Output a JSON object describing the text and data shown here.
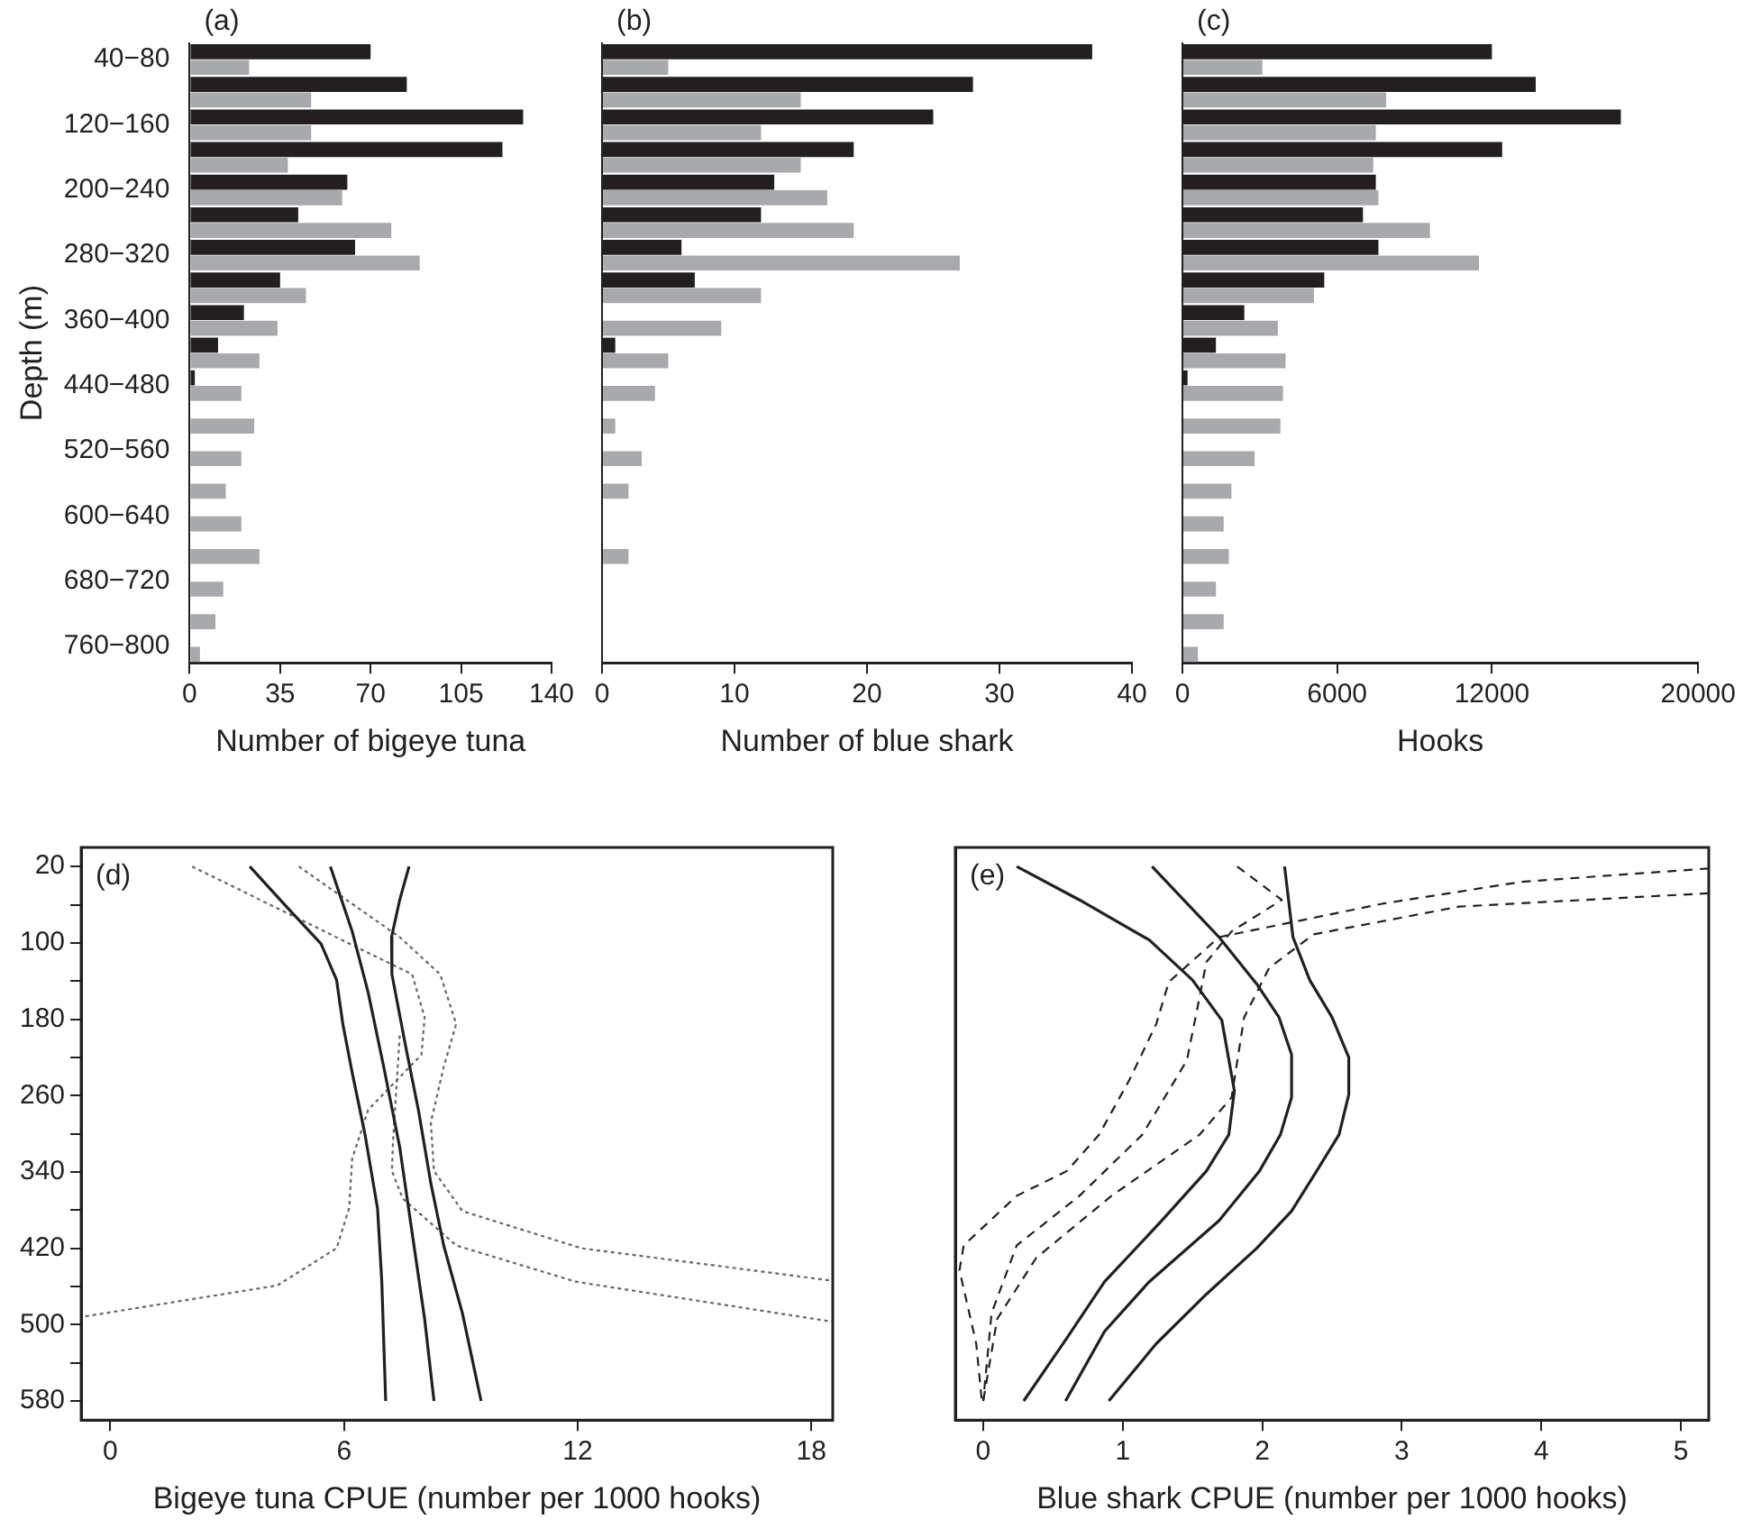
{
  "chart_data": [
    {
      "type": "bar",
      "title": "(a)",
      "orientation": "horizontal",
      "ylabel": "Depth (m)",
      "xlabel": "Number of bigeye tuna",
      "categories": [
        "40−80",
        null,
        "120−160",
        null,
        "200−240",
        null,
        "280−320",
        null,
        "360−400",
        null,
        "440−480",
        null,
        "520−560",
        null,
        "600−640",
        null,
        "680−720",
        null,
        "760−800"
      ],
      "series": [
        {
          "color": "#231f20",
          "values": [
            70,
            84,
            129,
            121,
            61,
            42,
            64,
            35,
            21,
            11,
            2,
            0,
            0,
            0,
            0,
            0,
            0,
            0,
            0
          ]
        },
        {
          "color": "#a7a9ac",
          "values": [
            23,
            47,
            47,
            38,
            59,
            78,
            89,
            45,
            34,
            27,
            20,
            25,
            20,
            14,
            20,
            27,
            13,
            10,
            4
          ]
        }
      ],
      "xlim": [
        0,
        140
      ],
      "xticks": [
        0,
        35,
        70,
        105,
        140
      ]
    },
    {
      "type": "bar",
      "title": "(b)",
      "orientation": "horizontal",
      "xlabel": "Number of blue shark",
      "tick_labels": "x",
      "categories": [
        null,
        null,
        null,
        null,
        null,
        null,
        null,
        null,
        null,
        null,
        null,
        null,
        null,
        null,
        null,
        null,
        null,
        null,
        null
      ],
      "series": [
        {
          "color": "#231f20",
          "values": [
            37,
            28,
            25,
            19,
            13,
            12,
            6,
            7,
            0,
            1,
            0,
            0,
            0,
            0,
            0,
            0,
            0,
            0,
            0
          ]
        },
        {
          "color": "#a7a9ac",
          "values": [
            5,
            15,
            12,
            15,
            17,
            19,
            27,
            12,
            9,
            5,
            4,
            1,
            3,
            2,
            0,
            2,
            0,
            0,
            0
          ]
        }
      ],
      "xlim": [
        0,
        40
      ],
      "xticks": [
        0,
        10,
        20,
        30,
        40
      ]
    },
    {
      "type": "bar",
      "title": "(c)",
      "orientation": "horizontal",
      "xlabel": "Hooks",
      "tick_labels": "x",
      "categories": [
        null,
        null,
        null,
        null,
        null,
        null,
        null,
        null,
        null,
        null,
        null,
        null,
        null,
        null,
        null,
        null,
        null,
        null,
        null
      ],
      "series": [
        {
          "color": "#231f20",
          "values": [
            12000,
            13700,
            17000,
            12400,
            7500,
            7000,
            7600,
            5500,
            2400,
            1300,
            200,
            0,
            0,
            0,
            0,
            0,
            0,
            0,
            0
          ]
        },
        {
          "color": "#a7a9ac",
          "values": [
            3100,
            7900,
            7500,
            7400,
            7600,
            9600,
            11500,
            5100,
            3700,
            4000,
            3900,
            3800,
            2800,
            1900,
            1600,
            1800,
            1300,
            1600,
            600
          ]
        }
      ],
      "xlim": [
        0,
        20000
      ],
      "xticks": [
        0,
        6000,
        12000,
        20000
      ]
    },
    {
      "type": "line",
      "title": "(d)",
      "xlabel": "Bigeye tuna CPUE (number per 1000 hooks)",
      "series": [
        {
          "color": "#231f20",
          "line_style": "solid",
          "x": [
            3.58,
            4.52,
            5.41,
            5.81,
            5.97,
            6.21,
            6.54,
            6.86,
            6.97,
            7.07
          ],
          "values": [
            20,
            62,
            101,
            139,
            185,
            236,
            301,
            378,
            455,
            580
          ]
        },
        {
          "color": "#231f20",
          "line_style": "solid",
          "x": [
            5.65,
            6.21,
            6.62,
            7.02,
            7.43,
            7.75,
            8.07,
            8.31
          ],
          "values": [
            20,
            88,
            152,
            230,
            314,
            404,
            494,
            580
          ]
        },
        {
          "color": "#231f20",
          "line_style": "solid",
          "x": [
            7.67,
            7.43,
            7.22,
            7.23,
            7.59,
            7.91,
            8.23,
            8.56,
            9.04,
            9.52
          ],
          "values": [
            20,
            55,
            94,
            133,
            210,
            275,
            352,
            417,
            488,
            580
          ]
        },
        {
          "color": "#666666",
          "line_style": "dotted",
          "x": [
            2.1,
            4.2,
            7.75,
            8.07,
            7.99,
            6.62,
            6.21,
            6.13,
            5.81,
            4.28,
            -0.75
          ],
          "values": [
            20,
            62,
            133,
            178,
            217,
            275,
            326,
            378,
            420,
            459,
            492
          ]
        },
        {
          "color": "#666666",
          "line_style": "dotted",
          "x": [
            4.84,
            7.43,
            8.47,
            8.88,
            8.56,
            8.23,
            8.31,
            9.04,
            12.1,
            18.55
          ],
          "values": [
            20,
            94,
            133,
            185,
            230,
            288,
            339,
            381,
            420,
            454
          ]
        },
        {
          "color": "#666666",
          "line_style": "dotted",
          "x": [
            7.43,
            7.26,
            7.23,
            7.51,
            8.88,
            11.95,
            18.55
          ],
          "values": [
            197,
            307,
            339,
            368,
            417,
            455,
            497
          ]
        }
      ],
      "xlim": [
        -0.75,
        18.55
      ],
      "xticks": [
        0,
        6,
        12,
        18
      ],
      "ylim": [
        600,
        0
      ],
      "yticks": [
        20,
        {
          "value": 60,
          "label": null
        },
        100,
        {
          "value": 140,
          "label": null
        },
        180,
        {
          "value": 220,
          "label": null
        },
        260,
        {
          "value": 300,
          "label": null
        },
        340,
        {
          "value": 380,
          "label": null
        },
        420,
        {
          "value": 460,
          "label": null
        },
        500,
        {
          "value": 540,
          "label": null
        },
        580
      ]
    },
    {
      "type": "line",
      "title": "(e)",
      "xlabel": "Blue shark CPUE (number per 1000 hooks)",
      "tick_labels": "x",
      "series": [
        {
          "color": "#231f20",
          "line_style": "solid",
          "x": [
            0.24,
            0.69,
            1.19,
            1.5,
            1.71,
            1.8,
            1.76,
            1.6,
            1.28,
            0.87,
            0.6,
            0.29
          ],
          "values": [
            20,
            55,
            97,
            139,
            181,
            255,
            301,
            339,
            391,
            455,
            514,
            580
          ]
        },
        {
          "color": "#231f20",
          "line_style": "solid",
          "x": [
            1.21,
            1.69,
            1.96,
            2.12,
            2.21,
            2.21,
            2.13,
            1.98,
            1.69,
            1.19,
            0.87,
            0.59
          ],
          "values": [
            20,
            94,
            143,
            178,
            217,
            262,
            301,
            339,
            391,
            455,
            507,
            580
          ]
        },
        {
          "color": "#231f20",
          "line_style": "solid",
          "x": [
            2.16,
            2.22,
            2.34,
            2.5,
            2.62,
            2.62,
            2.55,
            2.39,
            2.21,
            1.96,
            1.6,
            1.24,
            0.9
          ],
          "values": [
            20,
            94,
            139,
            178,
            220,
            259,
            301,
            339,
            381,
            420,
            468,
            520,
            580
          ]
        },
        {
          "color": "#231f20",
          "line_style": "dashed",
          "x": [
            5.2,
            3.86,
            2.86,
            1.69,
            1.33,
            1.24,
            1.05,
            0.83,
            0.6,
            0.24,
            -0.14,
            -0.17,
            -0.05,
            -0.01
          ],
          "values": [
            22,
            36,
            59,
            94,
            141,
            185,
            243,
            301,
            339,
            365,
            417,
            443,
            520,
            580
          ]
        },
        {
          "color": "#231f20",
          "line_style": "dashed",
          "x": [
            1.82,
            2.14,
            1.78,
            1.6,
            1.53,
            1.46,
            1.14,
            0.69,
            0.24,
            0.06,
            0
          ],
          "values": [
            20,
            55,
            88,
            120,
            172,
            223,
            301,
            365,
            417,
            488,
            580
          ]
        },
        {
          "color": "#231f20",
          "line_style": "dashed",
          "x": [
            5.2,
            3.41,
            2.37,
            2.05,
            1.87,
            1.78,
            1.55,
            0.92,
            0.38,
            0.1,
            0
          ],
          "values": [
            48,
            62,
            91,
            126,
            178,
            262,
            301,
            365,
            430,
            494,
            580
          ]
        }
      ],
      "xlim": [
        -0.2,
        5.2
      ],
      "xticks": [
        0,
        1,
        2,
        3,
        4,
        5
      ],
      "ylim": [
        600,
        0
      ]
    }
  ]
}
